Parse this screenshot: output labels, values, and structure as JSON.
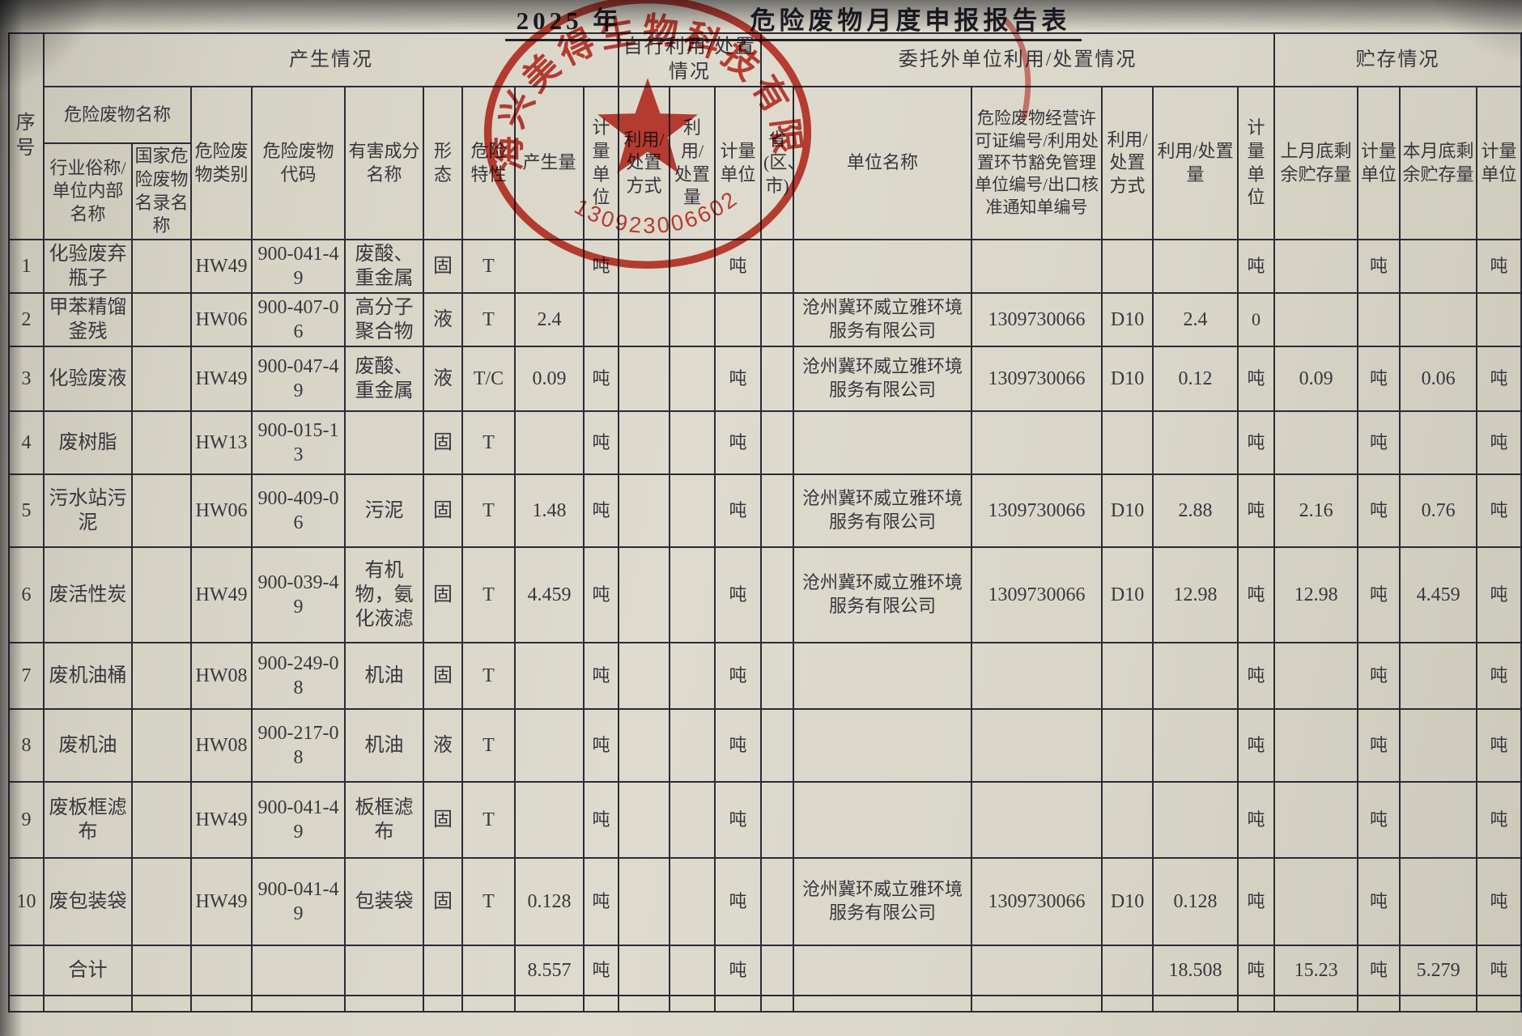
{
  "page": {
    "title_left": "2025 年",
    "title_right": "危险废物月度申报报告表"
  },
  "stamp": {
    "company": "海兴美得生物科技有限公司",
    "number": "1309230066021",
    "color": "#c92418",
    "star_icon": "red-star"
  },
  "table": {
    "header_rows": [
      [
        {
          "label": "序号",
          "rowspan": 3,
          "colspan": 1
        },
        {
          "label": "产生情况",
          "rowspan": 1,
          "colspan": 9
        },
        {
          "label": "自行利用/处置情况",
          "rowspan": 1,
          "colspan": 3
        },
        {
          "label": "委托外单位利用/处置情况",
          "rowspan": 1,
          "colspan": 6
        },
        {
          "label": "贮存情况",
          "rowspan": 1,
          "colspan": 4
        }
      ],
      [
        {
          "label": "危险废物名称",
          "rowspan": 1,
          "colspan": 2
        },
        {
          "label": "危险废物类别",
          "rowspan": 2,
          "colspan": 1
        },
        {
          "label": "危险废物代码",
          "rowspan": 2,
          "colspan": 1
        },
        {
          "label": "有害成分名称",
          "rowspan": 2,
          "colspan": 1
        },
        {
          "label": "形态",
          "rowspan": 2,
          "colspan": 1
        },
        {
          "label": "危险特性",
          "rowspan": 2,
          "colspan": 1
        },
        {
          "label": "产生量",
          "rowspan": 2,
          "colspan": 1
        },
        {
          "label": "计量单位",
          "rowspan": 2,
          "colspan": 1
        },
        {
          "label": "利用/处置方式",
          "rowspan": 2,
          "colspan": 1
        },
        {
          "label": "利用/处置量",
          "rowspan": 2,
          "colspan": 1
        },
        {
          "label": "计量单位",
          "rowspan": 2,
          "colspan": 1
        },
        {
          "label": "省(区、市)",
          "rowspan": 2,
          "colspan": 1
        },
        {
          "label": "单位名称",
          "rowspan": 2,
          "colspan": 1
        },
        {
          "label": "危险废物经营许可证编号/利用处置环节豁免管理单位编号/出口核准通知单编号",
          "rowspan": 2,
          "colspan": 1,
          "small": true
        },
        {
          "label": "利用/处置方式",
          "rowspan": 2,
          "colspan": 1
        },
        {
          "label": "利用/处置量",
          "rowspan": 2,
          "colspan": 1
        },
        {
          "label": "计量单位",
          "rowspan": 2,
          "colspan": 1
        },
        {
          "label": "上月底剩余贮存量",
          "rowspan": 2,
          "colspan": 1
        },
        {
          "label": "计量单位",
          "rowspan": 2,
          "colspan": 1
        },
        {
          "label": "本月底剩余贮存量",
          "rowspan": 2,
          "colspan": 1
        },
        {
          "label": "计量单位",
          "rowspan": 2,
          "colspan": 1
        }
      ],
      [
        {
          "label": "行业俗称/单位内部名称",
          "rowspan": 1,
          "colspan": 1
        },
        {
          "label": "国家危险废物名录名称",
          "rowspan": 1,
          "colspan": 1
        }
      ]
    ],
    "rows": [
      [
        "1",
        "化验废弃瓶子",
        "",
        "HW49",
        "900-041-49",
        "废酸、重金属",
        "固",
        "T",
        "",
        "吨",
        "",
        "",
        "吨",
        "",
        "",
        "",
        "",
        "",
        "吨",
        "",
        "吨",
        "",
        "吨"
      ],
      [
        "2",
        "甲苯精馏釜残",
        "",
        "HW06",
        "900-407-06",
        "高分子聚合物",
        "液",
        "T",
        "2.4",
        "",
        "",
        "",
        "",
        "",
        "沧州冀环威立雅环境服务有限公司",
        "1309730066",
        "D10",
        "2.4",
        "0",
        "",
        "",
        "",
        ""
      ],
      [
        "3",
        "化验废液",
        "",
        "HW49",
        "900-047-49",
        "废酸、重金属",
        "液",
        "T/C",
        "0.09",
        "吨",
        "",
        "",
        "吨",
        "",
        "沧州冀环威立雅环境服务有限公司",
        "1309730066",
        "D10",
        "0.12",
        "吨",
        "0.09",
        "吨",
        "0.06",
        "吨"
      ],
      [
        "4",
        "废树脂",
        "",
        "HW13",
        "900-015-13",
        "",
        "固",
        "T",
        "",
        "吨",
        "",
        "",
        "吨",
        "",
        "",
        "",
        "",
        "",
        "吨",
        "",
        "吨",
        "",
        "吨"
      ],
      [
        "5",
        "污水站污泥",
        "",
        "HW06",
        "900-409-06",
        "污泥",
        "固",
        "T",
        "1.48",
        "吨",
        "",
        "",
        "吨",
        "",
        "沧州冀环威立雅环境服务有限公司",
        "1309730066",
        "D10",
        "2.88",
        "吨",
        "2.16",
        "吨",
        "0.76",
        "吨"
      ],
      [
        "6",
        "废活性炭",
        "",
        "HW49",
        "900-039-49",
        "有机物，氨化液滤",
        "固",
        "T",
        "4.459",
        "吨",
        "",
        "",
        "吨",
        "",
        "沧州冀环威立雅环境服务有限公司",
        "1309730066",
        "D10",
        "12.98",
        "吨",
        "12.98",
        "吨",
        "4.459",
        "吨"
      ],
      [
        "7",
        "废机油桶",
        "",
        "HW08",
        "900-249-08",
        "机油",
        "固",
        "T",
        "",
        "吨",
        "",
        "",
        "吨",
        "",
        "",
        "",
        "",
        "",
        "吨",
        "",
        "吨",
        "",
        "吨"
      ],
      [
        "8",
        "废机油",
        "",
        "HW08",
        "900-217-08",
        "机油",
        "液",
        "T",
        "",
        "吨",
        "",
        "",
        "吨",
        "",
        "",
        "",
        "",
        "",
        "吨",
        "",
        "吨",
        "",
        "吨"
      ],
      [
        "9",
        "废板框滤布",
        "",
        "HW49",
        "900-041-49",
        "板框滤布",
        "固",
        "T",
        "",
        "吨",
        "",
        "",
        "吨",
        "",
        "",
        "",
        "",
        "",
        "吨",
        "",
        "吨",
        "",
        "吨"
      ],
      [
        "10",
        "废包装袋",
        "",
        "HW49",
        "900-041-49",
        "包装袋",
        "固",
        "T",
        "0.128",
        "吨",
        "",
        "",
        "吨",
        "",
        "沧州冀环威立雅环境服务有限公司",
        "1309730066",
        "D10",
        "0.128",
        "吨",
        "",
        "吨",
        "",
        "吨"
      ]
    ],
    "total_row": [
      "",
      "合计",
      "",
      "",
      "",
      "",
      "",
      "",
      "8.557",
      "吨",
      "",
      "",
      "吨",
      "",
      "",
      "",
      "",
      "18.508",
      "吨",
      "15.23",
      "吨",
      "5.279",
      "吨"
    ]
  }
}
